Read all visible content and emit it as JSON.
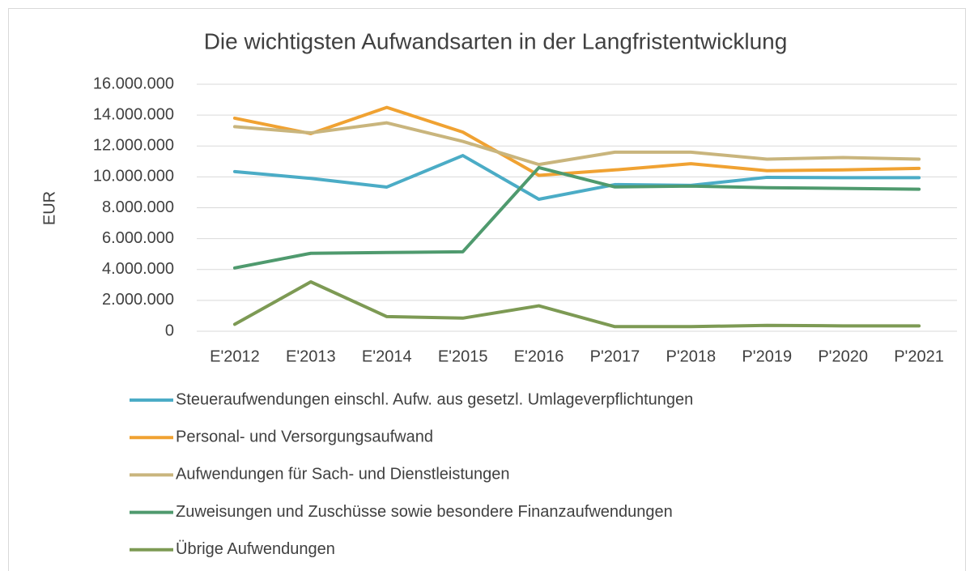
{
  "chart_data": {
    "type": "line",
    "title": "Die wichtigsten Aufwandsarten in der Langfristentwicklung",
    "y_label": "EUR",
    "categories": [
      "E'2012",
      "E'2013",
      "E'2014",
      "E'2015",
      "E'2016",
      "P'2017",
      "P'2018",
      "P'2019",
      "P'2020",
      "P'2021"
    ],
    "series": [
      {
        "name": "Steueraufwendungen einschl. Aufw. aus gesetzl. Umlageverpflichtungen",
        "color": "#4bacc6",
        "values": [
          10340000,
          9900000,
          9340000,
          11380000,
          8550000,
          9500000,
          9450000,
          9970000,
          9950000,
          9950000
        ]
      },
      {
        "name": "Personal- und Versorgungsaufwand",
        "color": "#f0a232",
        "values": [
          13800000,
          12800000,
          14500000,
          12900000,
          10100000,
          10450000,
          10850000,
          10400000,
          10450000,
          10550000
        ]
      },
      {
        "name": "Aufwendungen für Sach- und Dienstleistungen",
        "color": "#c9b57d",
        "values": [
          13250000,
          12850000,
          13500000,
          12300000,
          10800000,
          11600000,
          11600000,
          11150000,
          11250000,
          11150000
        ]
      },
      {
        "name": "Zuweisungen und Zuschüsse sowie besondere Finanzaufwendungen",
        "color": "#4f9a6e",
        "values": [
          4100000,
          5050000,
          5100000,
          5150000,
          10600000,
          9350000,
          9400000,
          9300000,
          9250000,
          9200000
        ]
      },
      {
        "name": "Übrige Aufwendungen",
        "color": "#7d9a54",
        "values": [
          450000,
          3200000,
          950000,
          850000,
          1650000,
          300000,
          300000,
          380000,
          350000,
          350000
        ]
      }
    ],
    "ylim": [
      0,
      16000000
    ],
    "yticks": [
      0,
      {
        "value": 2000000,
        "label": "2.000.000"
      },
      {
        "value": 4000000,
        "label": "4.000.000"
      },
      {
        "value": 6000000,
        "label": "6.000.000"
      },
      {
        "value": 8000000,
        "label": "8.000.000"
      },
      {
        "value": 10000000,
        "label": "10.000.000"
      },
      {
        "value": 12000000,
        "label": "12.000.000"
      },
      {
        "value": 14000000,
        "label": "14.000.000"
      },
      {
        "value": 16000000,
        "label": "16.000.000"
      }
    ],
    "grid": true,
    "legend": "bottom"
  }
}
